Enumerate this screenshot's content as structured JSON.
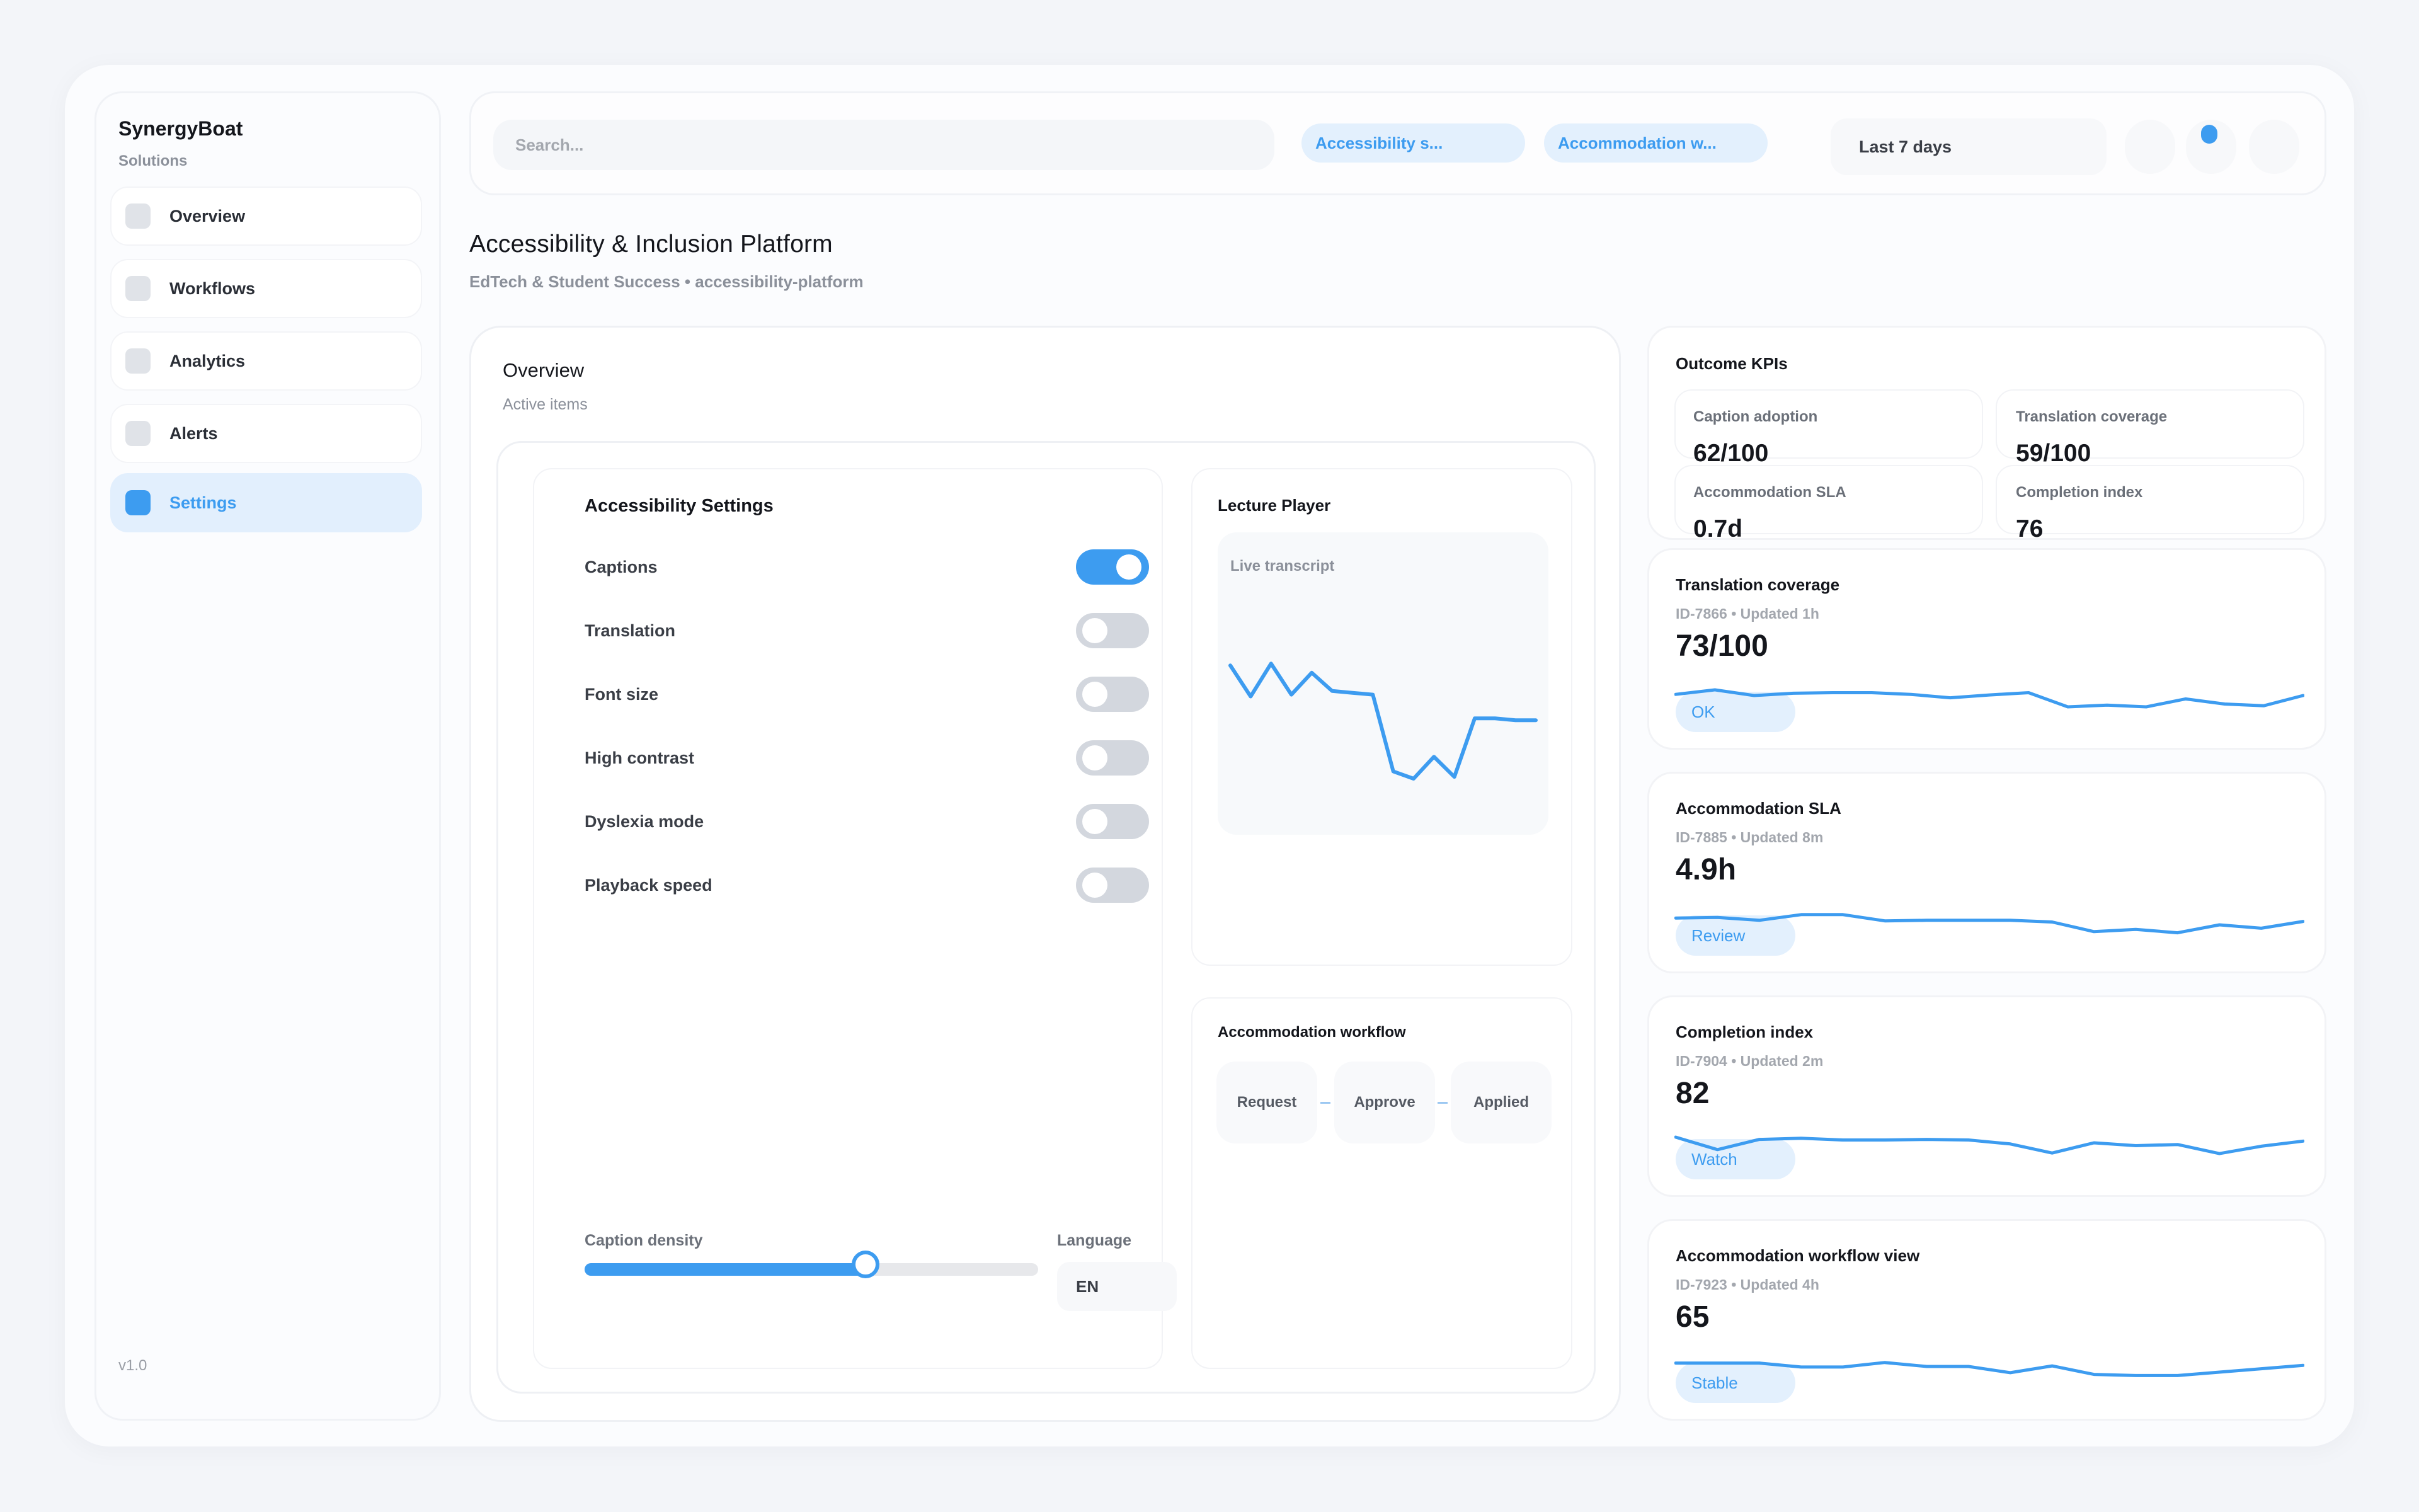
{
  "app": {
    "name": "SynergyBoat",
    "subtitle": "Solutions",
    "version": "v1.0"
  },
  "sidebar": {
    "items": [
      {
        "label": "Overview",
        "active": false
      },
      {
        "label": "Workflows",
        "active": false
      },
      {
        "label": "Analytics",
        "active": false
      },
      {
        "label": "Alerts",
        "active": false
      },
      {
        "label": "Settings",
        "active": true
      }
    ]
  },
  "topbar": {
    "search_placeholder": "Search...",
    "chips": [
      "Accessibility s...",
      "Accommodation w..."
    ],
    "date_range": "Last 7 days"
  },
  "page": {
    "title": "Accessibility & Inclusion Platform",
    "subtitle": "EdTech & Student Success • accessibility-platform"
  },
  "overview": {
    "title": "Overview",
    "subtitle": "Active items",
    "settings": {
      "title": "Accessibility Settings",
      "toggles": [
        {
          "label": "Captions",
          "on": true
        },
        {
          "label": "Translation",
          "on": false
        },
        {
          "label": "Font size",
          "on": false
        },
        {
          "label": "High contrast",
          "on": false
        },
        {
          "label": "Dyslexia mode",
          "on": false
        },
        {
          "label": "Playback speed",
          "on": false
        }
      ],
      "slider": {
        "label": "Caption density",
        "value_pct": 62
      },
      "language": {
        "label": "Language",
        "value": "EN"
      }
    },
    "player": {
      "title": "Lecture Player",
      "transcript_label": "Live transcript",
      "series": [
        72,
        55,
        73,
        56,
        68,
        58,
        57,
        56,
        14,
        10,
        22,
        11,
        43,
        43,
        42,
        42
      ]
    },
    "workflow": {
      "title": "Accommodation workflow",
      "steps": [
        "Request",
        "Approve",
        "Applied"
      ]
    }
  },
  "kpis": {
    "title": "Outcome KPIs",
    "items": [
      {
        "label": "Caption adoption",
        "value": "62/100"
      },
      {
        "label": "Translation coverage",
        "value": "59/100"
      },
      {
        "label": "Accommodation SLA",
        "value": "0.7d"
      },
      {
        "label": "Completion index",
        "value": "76"
      }
    ]
  },
  "metrics": [
    {
      "title": "Translation coverage",
      "meta": "ID-7866 • Updated 1h",
      "value": "73/100",
      "badge": "OK",
      "series": [
        62,
        70,
        60,
        64,
        65,
        65,
        62,
        56,
        61,
        65,
        40,
        43,
        40,
        54,
        45,
        42,
        60
      ]
    },
    {
      "title": "Accommodation SLA",
      "meta": "ID-7885 • Updated 8m",
      "value": "4.9h",
      "badge": "Review",
      "series": [
        62,
        63,
        58,
        68,
        68,
        57,
        58,
        58,
        58,
        55,
        38,
        42,
        36,
        50,
        44,
        56
      ]
    },
    {
      "title": "Completion index",
      "meta": "ID-7904 • Updated 2m",
      "value": "82",
      "badge": "Watch",
      "series": [
        70,
        48,
        66,
        68,
        65,
        65,
        66,
        65,
        58,
        42,
        60,
        55,
        57,
        41,
        54,
        63
      ]
    },
    {
      "title": "Accommodation workflow view",
      "meta": "ID-7923 • Updated 4h",
      "value": "65",
      "badge": "Stable",
      "series": [
        66,
        66,
        66,
        59,
        59,
        67,
        60,
        60,
        49,
        61,
        46,
        44,
        44,
        50,
        56,
        62
      ]
    }
  ],
  "colors": {
    "accent": "#3d9cf0",
    "accent_soft": "#e3f0fd",
    "background": "#f3f5f9"
  }
}
